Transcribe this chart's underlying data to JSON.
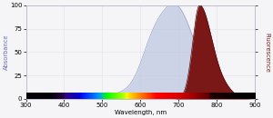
{
  "xmin": 300,
  "xmax": 900,
  "ymin": 0,
  "ymax": 100,
  "xlabel": "Wavelength, nm",
  "ylabel_left": "Absorbance",
  "ylabel_right": "Fluorescence",
  "excitation_color": "#c0c8e0",
  "excitation_edge_color": "#9098c8",
  "emission_color": "#7a1818",
  "emission_edge_color": "#550808",
  "bg_color": "#f5f5f8",
  "grid_color": "#e0e0ec",
  "tick_label_fontsize": 5.0,
  "axis_label_fontsize": 5.0,
  "ylabel_fontsize": 4.8,
  "xticks": [
    300,
    400,
    500,
    600,
    700,
    800,
    900
  ],
  "yticks": [
    0,
    25,
    50,
    75,
    100
  ]
}
